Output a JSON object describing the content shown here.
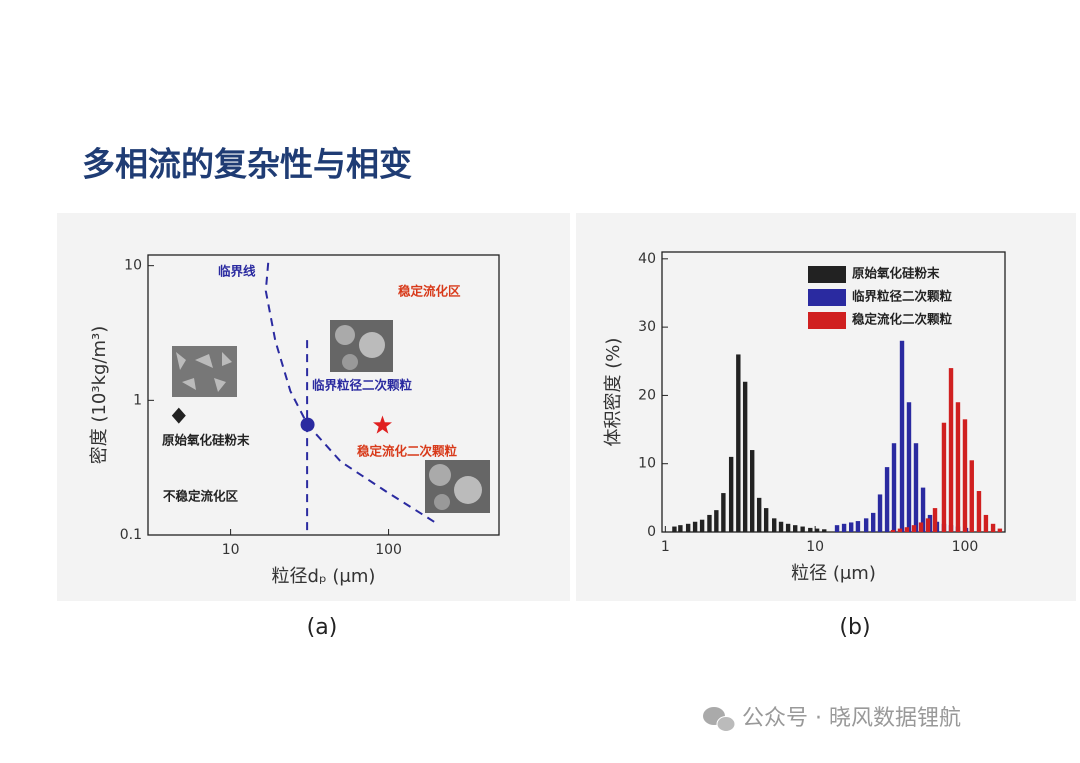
{
  "title": "多相流的复杂性与相变",
  "watermark": "公众号 · 晓风数据锂航",
  "chart_data": [
    {
      "type": "scatter",
      "caption": "(a)",
      "xlabel": "粒径dₚ (μm)",
      "ylabel": "密度 (10³kg/m³)",
      "xlog": true,
      "ylog": true,
      "xlim": [
        3,
        500
      ],
      "ylim": [
        0.1,
        12
      ],
      "xticks": [
        10,
        100
      ],
      "yticks": [
        0.1,
        1,
        10
      ],
      "series": [
        {
          "marker": "dashed-line",
          "color": "#2a2aa0",
          "x": [
            17.3,
            16.7,
            19.2,
            23.9,
            30.7,
            49.9,
            96.7,
            195
          ],
          "values": [
            10.5,
            6.5,
            2.76,
            1.17,
            0.66,
            0.35,
            0.21,
            0.125
          ]
        },
        {
          "marker": "dashed-line",
          "color": "#2a2aa0",
          "x": [
            30.5,
            30.5
          ],
          "values": [
            2.8,
            0.1
          ]
        },
        {
          "marker": "diamond",
          "color": "#222222",
          "x": [
            4.7
          ],
          "values": [
            0.77
          ]
        },
        {
          "marker": "circle",
          "color": "#2a2aa0",
          "x": [
            30.7
          ],
          "values": [
            0.66
          ]
        },
        {
          "marker": "star",
          "color": "#e02020",
          "x": [
            91.5
          ],
          "values": [
            0.65
          ]
        }
      ],
      "annotations": [
        {
          "text": "临界线",
          "color": "#2a2aa0"
        },
        {
          "text": "稳定流化区",
          "color": "#d83a1a"
        },
        {
          "text": "临界粒径二次颗粒",
          "color": "#2a2aa0"
        },
        {
          "text": "稳定流化二次颗粒",
          "color": "#d83a1a"
        },
        {
          "text": "原始氧化硅粉末",
          "color": "#222222"
        },
        {
          "text": "不稳定流化区",
          "color": "#222222"
        }
      ]
    },
    {
      "type": "bar",
      "caption": "(b)",
      "xlabel": "粒径 (μm)",
      "ylabel": "体积密度 (%)",
      "xlog": true,
      "ylog": false,
      "xlim": [
        0.95,
        185
      ],
      "ylim": [
        0,
        41
      ],
      "xticks": [
        1,
        10,
        100
      ],
      "yticks": [
        0,
        10,
        20,
        30,
        40
      ],
      "legend": "top-right",
      "series": [
        {
          "name": "原始氧化硅粉末",
          "color": "#222222",
          "x": [
            1.15,
            1.26,
            1.42,
            1.58,
            1.76,
            1.97,
            2.19,
            2.44,
            2.75,
            3.07,
            3.41,
            3.8,
            4.23,
            4.71,
            5.33,
            5.92,
            6.6,
            7.36,
            8.25,
            9.28,
            10.3,
            11.5
          ],
          "values": [
            0.8,
            1,
            1.2,
            1.5,
            1.8,
            2.5,
            3.2,
            5.7,
            11,
            26,
            22,
            12,
            5,
            3.5,
            2,
            1.5,
            1.2,
            1,
            0.8,
            0.6,
            0.5,
            0.4
          ]
        },
        {
          "name": "临界粒径二次颗粒",
          "color": "#2a2aa0",
          "x": [
            14,
            15.6,
            17.4,
            19.3,
            21.9,
            24.4,
            27.1,
            30.2,
            33.6,
            38,
            42.3,
            47.1,
            52.5,
            58.4,
            65,
            72.4,
            80.7,
            89.8,
            101.6
          ],
          "values": [
            1,
            1.2,
            1.4,
            1.6,
            2,
            2.8,
            5.5,
            9.5,
            13,
            28,
            19,
            13,
            6.5,
            2.5,
            1.5,
            1.2,
            1,
            0.8,
            0.6
          ]
        },
        {
          "name": "稳定流化二次颗粒",
          "color": "#d02020",
          "x": [
            33.1,
            36.8,
            41,
            45.7,
            50.9,
            56.7,
            63.1,
            72.4,
            80.7,
            89.8,
            100,
            111,
            124,
            138,
            154,
            171
          ],
          "values": [
            0.3,
            0.5,
            0.7,
            1,
            1.4,
            2,
            3.5,
            16,
            24,
            19,
            16.5,
            10.5,
            6,
            2.5,
            1.2,
            0.5
          ]
        }
      ]
    }
  ]
}
